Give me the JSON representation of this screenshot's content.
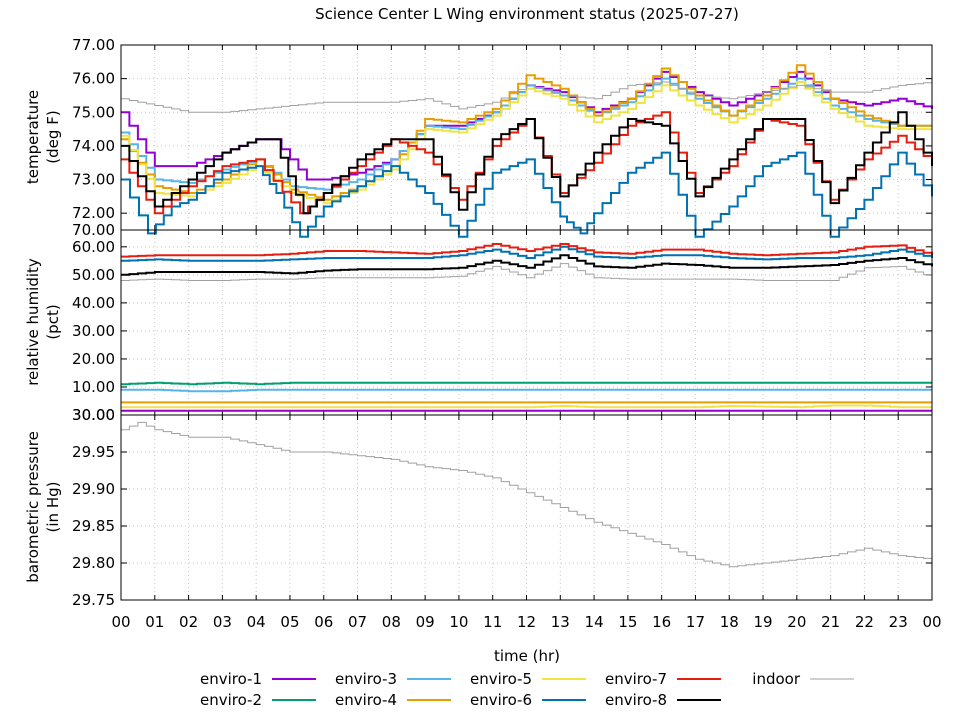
{
  "title": "Science Center L Wing environment status (2025-07-27)",
  "xlabel": "time (hr)",
  "x_ticks": [
    "00",
    "01",
    "02",
    "03",
    "04",
    "05",
    "06",
    "07",
    "08",
    "09",
    "10",
    "11",
    "12",
    "13",
    "14",
    "15",
    "16",
    "17",
    "18",
    "19",
    "20",
    "21",
    "22",
    "23",
    "00"
  ],
  "legend": [
    {
      "name": "enviro-1",
      "color": "#9400d3"
    },
    {
      "name": "enviro-2",
      "color": "#009e73"
    },
    {
      "name": "enviro-3",
      "color": "#56b4e9"
    },
    {
      "name": "enviro-4",
      "color": "#e69f00"
    },
    {
      "name": "enviro-5",
      "color": "#f0e442"
    },
    {
      "name": "enviro-6",
      "color": "#0072b2"
    },
    {
      "name": "enviro-7",
      "color": "#e51e10"
    },
    {
      "name": "enviro-8",
      "color": "#000000"
    },
    {
      "name": "indoor",
      "color": "#a0a0a0"
    }
  ],
  "chart_data": [
    {
      "type": "line",
      "ylabel_line1": "temperature",
      "ylabel_line2": "(deg F)",
      "ylim": [
        71.5,
        77.0
      ],
      "y_ticks": [
        "72.00",
        "73.00",
        "74.00",
        "75.00",
        "76.00",
        "77.00"
      ],
      "bottom_label": "70.00",
      "series": [
        {
          "name": "enviro-1",
          "color": "#9400d3",
          "x": [
            0,
            1,
            2,
            3,
            4,
            4.5,
            5.5,
            6,
            7,
            8,
            9,
            10,
            11,
            12,
            13,
            14,
            15,
            16,
            17,
            18,
            19,
            20,
            21,
            22,
            23,
            24
          ],
          "y": [
            75.0,
            73.4,
            73.4,
            73.8,
            74.2,
            74.2,
            73.0,
            73.0,
            73.2,
            73.6,
            74.6,
            74.6,
            75.0,
            75.8,
            75.6,
            75.0,
            75.4,
            76.2,
            75.6,
            75.2,
            75.6,
            76.2,
            75.4,
            75.2,
            75.4,
            75.1
          ]
        },
        {
          "name": "enviro-3",
          "color": "#56b4e9",
          "x": [
            0,
            1,
            2,
            3,
            4,
            5,
            6,
            7,
            8,
            9,
            10,
            11,
            12,
            13,
            14,
            15,
            16,
            17,
            18,
            19,
            20,
            21,
            22,
            23,
            24
          ],
          "y": [
            74.4,
            73.0,
            72.9,
            73.3,
            73.6,
            72.8,
            72.7,
            73.0,
            73.6,
            74.6,
            74.5,
            75.0,
            75.8,
            75.5,
            74.9,
            75.3,
            76.0,
            75.4,
            74.9,
            75.4,
            76.0,
            75.2,
            74.8,
            74.6,
            74.6
          ]
        },
        {
          "name": "enviro-4",
          "color": "#e69f00",
          "x": [
            0,
            1,
            2,
            3,
            4,
            5,
            6,
            7,
            8,
            9,
            10,
            11,
            12,
            13,
            14,
            15,
            16,
            17,
            18,
            19,
            20,
            21,
            22,
            23,
            24
          ],
          "y": [
            74.2,
            72.8,
            72.6,
            73.0,
            73.6,
            72.7,
            72.4,
            72.8,
            73.4,
            74.8,
            74.7,
            75.1,
            76.1,
            75.7,
            74.9,
            75.4,
            76.3,
            75.5,
            74.9,
            75.5,
            76.4,
            75.4,
            74.9,
            74.6,
            74.6
          ]
        },
        {
          "name": "enviro-5",
          "color": "#f0e442",
          "x": [
            0,
            1,
            2,
            3,
            4,
            5,
            6,
            7,
            8,
            9,
            10,
            11,
            12,
            13,
            14,
            15,
            16,
            17,
            18,
            19,
            20,
            21,
            22,
            23,
            24
          ],
          "y": [
            74.3,
            72.6,
            72.5,
            72.9,
            73.4,
            72.6,
            72.3,
            72.7,
            73.3,
            74.5,
            74.4,
            74.9,
            75.7,
            75.4,
            74.7,
            75.1,
            75.8,
            75.2,
            74.7,
            75.2,
            75.9,
            75.1,
            74.6,
            74.5,
            74.5
          ]
        },
        {
          "name": "enviro-6",
          "color": "#0072b2",
          "x": [
            0,
            0.8,
            1.5,
            2,
            3,
            4,
            4.6,
            5.3,
            6,
            7,
            8,
            9,
            10,
            11,
            12,
            13,
            13.6,
            14,
            15,
            16,
            17,
            18,
            19,
            20,
            21,
            22,
            23,
            24
          ],
          "y": [
            73.0,
            71.4,
            72.2,
            72.4,
            73.2,
            73.4,
            72.6,
            71.3,
            72.2,
            72.8,
            73.4,
            72.6,
            71.3,
            73.2,
            73.6,
            71.9,
            71.4,
            72.0,
            73.2,
            73.8,
            71.3,
            72.2,
            73.4,
            73.8,
            71.3,
            72.4,
            73.8,
            72.5
          ]
        },
        {
          "name": "enviro-7",
          "color": "#e51e10",
          "x": [
            0,
            1,
            2,
            3,
            4,
            5.3,
            6,
            7,
            8,
            9,
            10,
            11,
            12,
            13,
            14,
            15,
            16,
            17,
            18,
            19,
            20,
            21,
            22,
            23,
            24
          ],
          "y": [
            73.6,
            72.0,
            72.8,
            73.4,
            73.6,
            72.0,
            72.6,
            73.4,
            74.2,
            73.8,
            72.4,
            74.0,
            74.8,
            72.6,
            73.5,
            74.6,
            75.0,
            72.6,
            73.4,
            74.8,
            74.6,
            72.4,
            73.6,
            74.3,
            73.5
          ]
        },
        {
          "name": "enviro-8",
          "color": "#000000",
          "x": [
            0,
            1,
            2,
            3,
            4,
            4.5,
            5.4,
            6,
            7,
            8,
            9,
            10,
            11,
            12,
            13,
            14,
            15,
            16,
            17,
            18,
            19,
            20,
            21,
            22,
            23,
            24
          ],
          "y": [
            74.0,
            72.2,
            73.0,
            73.8,
            74.2,
            74.2,
            72.0,
            72.6,
            73.6,
            74.2,
            74.2,
            72.1,
            74.2,
            74.8,
            72.5,
            73.8,
            74.8,
            74.6,
            72.5,
            73.6,
            74.8,
            74.8,
            72.3,
            73.8,
            75.0,
            73.4
          ]
        },
        {
          "name": "indoor",
          "color": "#a0a0a0",
          "x": [
            0,
            1,
            2,
            3,
            4,
            5,
            6,
            7,
            8,
            9,
            10,
            11,
            12,
            13,
            14,
            15,
            16,
            17,
            18,
            19,
            20,
            21,
            22,
            23,
            24
          ],
          "y": [
            75.4,
            75.2,
            75.0,
            75.0,
            75.1,
            75.2,
            75.3,
            75.3,
            75.3,
            75.4,
            75.1,
            75.3,
            75.8,
            75.5,
            75.4,
            75.8,
            75.9,
            75.5,
            75.4,
            75.6,
            75.8,
            75.6,
            75.6,
            75.8,
            75.9
          ]
        }
      ]
    },
    {
      "type": "line",
      "ylabel_line1": "relative humidity",
      "ylabel_line2": "(pct)",
      "ylim": [
        0,
        66
      ],
      "y_ticks": [
        "10.00",
        "20.00",
        "30.00",
        "40.00",
        "50.00",
        "60.00"
      ],
      "bottom_label": "30.00",
      "series": [
        {
          "name": "enviro-1",
          "color": "#9400d3",
          "x": [
            0,
            24
          ],
          "y": [
            1.5,
            1.5
          ]
        },
        {
          "name": "enviro-2",
          "color": "#009e73",
          "x": [
            0,
            1,
            2,
            3,
            4,
            5,
            6,
            7,
            8,
            9,
            10,
            11,
            12,
            13,
            14,
            15,
            16,
            17,
            18,
            19,
            20,
            21,
            22,
            23,
            24
          ],
          "y": [
            11,
            11.5,
            11,
            11.5,
            11,
            11.5,
            11.5,
            11.5,
            11.5,
            11.5,
            11.5,
            11.5,
            11.5,
            11.5,
            11.5,
            11.5,
            11.5,
            11.5,
            11.5,
            11.5,
            11.5,
            11.5,
            11.5,
            11.5,
            11.5
          ]
        },
        {
          "name": "enviro-3",
          "color": "#56b4e9",
          "x": [
            0,
            1,
            2,
            3,
            4,
            5,
            6,
            7,
            8,
            9,
            10,
            11,
            12,
            13,
            14,
            15,
            16,
            17,
            18,
            19,
            20,
            21,
            22,
            23,
            24
          ],
          "y": [
            9,
            9,
            8.5,
            8.5,
            9,
            9,
            9,
            9,
            9,
            9,
            9,
            9,
            9,
            9,
            9,
            9,
            9,
            9,
            9,
            9,
            9,
            9,
            9,
            9,
            9
          ]
        },
        {
          "name": "enviro-4",
          "color": "#e69f00",
          "x": [
            0,
            24
          ],
          "y": [
            4.5,
            4.5
          ]
        },
        {
          "name": "enviro-5",
          "color": "#f0e442",
          "x": [
            0,
            6,
            9,
            12,
            13,
            14,
            17,
            18,
            20,
            21,
            22,
            23,
            24
          ],
          "y": [
            2.8,
            2.8,
            2.8,
            2.8,
            3.2,
            2.8,
            2.8,
            3.2,
            2.8,
            3.4,
            3.4,
            2.8,
            2.8
          ]
        },
        {
          "name": "enviro-6",
          "color": "#0072b2",
          "x": [
            0,
            1,
            2,
            3,
            4,
            5,
            6,
            7,
            8,
            9,
            10,
            11,
            12,
            13,
            14,
            15,
            16,
            17,
            18,
            19,
            20,
            21,
            22,
            23,
            24
          ],
          "y": [
            55.0,
            55.5,
            55.0,
            55.0,
            55.0,
            55.5,
            56.0,
            56.0,
            56.0,
            56.0,
            57.0,
            59.0,
            56.0,
            60.0,
            56.5,
            56.0,
            57.0,
            57.0,
            56.0,
            55.5,
            56.0,
            56.0,
            57.0,
            59.0,
            56.0
          ]
        },
        {
          "name": "enviro-7",
          "color": "#e51e10",
          "x": [
            0,
            1,
            2,
            3,
            4,
            5,
            6,
            7,
            8,
            9,
            10,
            11,
            12,
            13,
            14,
            15,
            16,
            17,
            18,
            19,
            20,
            21,
            22,
            23,
            24
          ],
          "y": [
            56.5,
            57.0,
            57.0,
            57.0,
            57.0,
            57.5,
            58.5,
            58.5,
            58.0,
            57.5,
            58.5,
            61.0,
            58.5,
            61.0,
            58.0,
            57.5,
            59.0,
            59.0,
            57.5,
            57.0,
            57.5,
            58.0,
            60.0,
            60.5,
            57.0
          ]
        },
        {
          "name": "enviro-8",
          "color": "#000000",
          "x": [
            0,
            1,
            2,
            3,
            4,
            5,
            6,
            7,
            8,
            9,
            10,
            11,
            12,
            13,
            14,
            15,
            16,
            17,
            18,
            19,
            20,
            21,
            22,
            23,
            24
          ],
          "y": [
            50.0,
            51.0,
            51.0,
            51.0,
            51.0,
            50.5,
            51.5,
            52.0,
            52.0,
            52.0,
            52.5,
            55.0,
            52.5,
            57.0,
            53.0,
            52.5,
            54.0,
            53.5,
            52.5,
            52.5,
            53.0,
            53.5,
            55.0,
            56.0,
            53.0
          ]
        },
        {
          "name": "indoor",
          "color": "#a0a0a0",
          "x": [
            0,
            1,
            2,
            3,
            4,
            5,
            6,
            7,
            8,
            9,
            10,
            11,
            12,
            13,
            14,
            15,
            16,
            17,
            18,
            19,
            20,
            21,
            22,
            23,
            24
          ],
          "y": [
            48.0,
            48.5,
            48.0,
            48.0,
            48.5,
            48.5,
            49.0,
            49.0,
            49.0,
            49.0,
            49.5,
            53.0,
            49.0,
            54.0,
            49.0,
            48.5,
            48.5,
            48.5,
            48.5,
            48.0,
            48.0,
            48.0,
            52.5,
            53.0,
            49.0
          ]
        }
      ]
    },
    {
      "type": "line",
      "ylabel_line1": "barometric pressure",
      "ylabel_line2": "(in Hg)",
      "ylim": [
        29.75,
        30.0
      ],
      "y_ticks": [
        "29.75",
        "29.80",
        "29.85",
        "29.90",
        "29.95",
        "30.00"
      ],
      "series": [
        {
          "name": "indoor",
          "color": "#a0a0a0",
          "x": [
            0,
            0.5,
            1,
            2,
            3,
            4,
            5,
            6,
            7,
            8,
            9,
            10,
            11,
            12,
            13,
            14,
            15,
            16,
            17,
            18,
            19,
            20,
            21,
            22,
            23,
            24
          ],
          "y": [
            29.98,
            29.99,
            29.98,
            29.97,
            29.97,
            29.96,
            29.95,
            29.95,
            29.945,
            29.94,
            29.93,
            29.925,
            29.915,
            29.895,
            29.875,
            29.855,
            29.84,
            29.825,
            29.805,
            29.795,
            29.8,
            29.805,
            29.81,
            29.82,
            29.81,
            29.805
          ]
        }
      ]
    }
  ]
}
